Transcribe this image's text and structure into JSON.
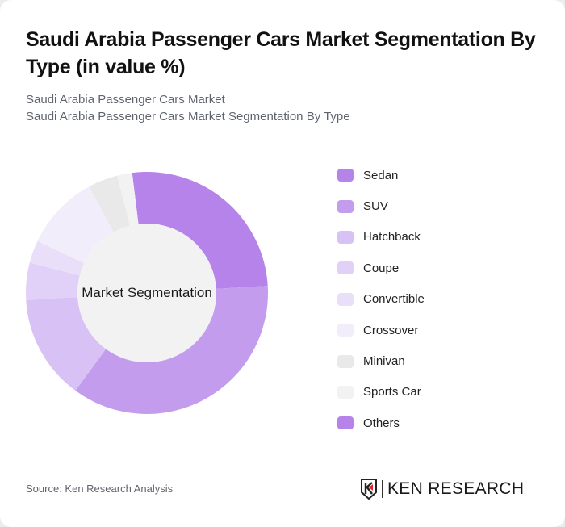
{
  "header": {
    "title": "Saudi Arabia Passenger Cars Market Segmentation By Type (in value %)",
    "subtitle_line1": "Saudi Arabia Passenger Cars Market",
    "subtitle_line2": "Saudi Arabia Passenger Cars Market Segmentation By Type"
  },
  "chart": {
    "center_label": "Market Segmentation"
  },
  "legend": [
    {
      "label": "Sedan",
      "color": "#b583ea"
    },
    {
      "label": "SUV",
      "color": "#c49cee"
    },
    {
      "label": "Hatchback",
      "color": "#d8c1f5"
    },
    {
      "label": "Coupe",
      "color": "#e1d0f7"
    },
    {
      "label": "Convertible",
      "color": "#eadff9"
    },
    {
      "label": "Crossover",
      "color": "#f2edfb"
    },
    {
      "label": "Minivan",
      "color": "#e9e9e9"
    },
    {
      "label": "Sports Car",
      "color": "#f2f2f2"
    },
    {
      "label": "Others",
      "color": "#b583ea"
    }
  ],
  "footer": {
    "source": "Source: Ken Research Analysis",
    "logo_text": "KEN RESEARCH"
  },
  "chart_data": {
    "type": "pie",
    "variant": "donut",
    "title": "Saudi Arabia Passenger Cars Market Segmentation By Type (in value %)",
    "center_label": "Market Segmentation",
    "categories": [
      "Sedan",
      "SUV",
      "Hatchback",
      "Coupe",
      "Convertible",
      "Crossover",
      "Minivan",
      "Sports Car",
      "Others"
    ],
    "values": [
      26,
      36,
      14,
      5,
      3,
      10,
      4,
      2,
      0
    ],
    "colors": [
      "#b583ea",
      "#c49cee",
      "#d8c1f5",
      "#e1d0f7",
      "#eadff9",
      "#f2edfb",
      "#e9e9e9",
      "#f2f2f2",
      "#b583ea"
    ],
    "legend_position": "right",
    "start_angle_deg": -7
  }
}
